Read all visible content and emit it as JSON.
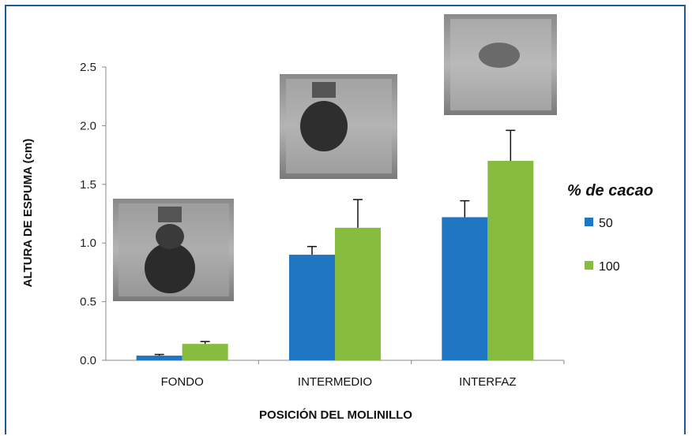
{
  "chart_data": {
    "type": "bar",
    "categories": [
      "FONDO",
      "INTERMEDIO",
      "INTERFAZ"
    ],
    "series": [
      {
        "name": "50",
        "values": [
          0.04,
          0.9,
          1.22
        ],
        "errors": [
          0.01,
          0.07,
          0.14
        ],
        "color": "#1f77c4"
      },
      {
        "name": "100",
        "values": [
          0.14,
          1.13,
          1.7
        ],
        "errors": [
          0.02,
          0.24,
          0.26
        ],
        "color": "#86bd3f"
      }
    ],
    "xlabel": "POSICIÓN DEL MOLINILLO",
    "ylabel": "ALTURA DE ESPUMA (cm)",
    "ylim": [
      0,
      2.5
    ],
    "yticks": [
      "0.0",
      "0.5",
      "1.0",
      "1.5",
      "2.0",
      "2.5"
    ],
    "grid": false,
    "legend": {
      "title": "% de cacao",
      "placement": "right"
    }
  },
  "photos": [
    "foam-photo-fondo",
    "foam-photo-intermedio",
    "foam-photo-interfaz"
  ]
}
